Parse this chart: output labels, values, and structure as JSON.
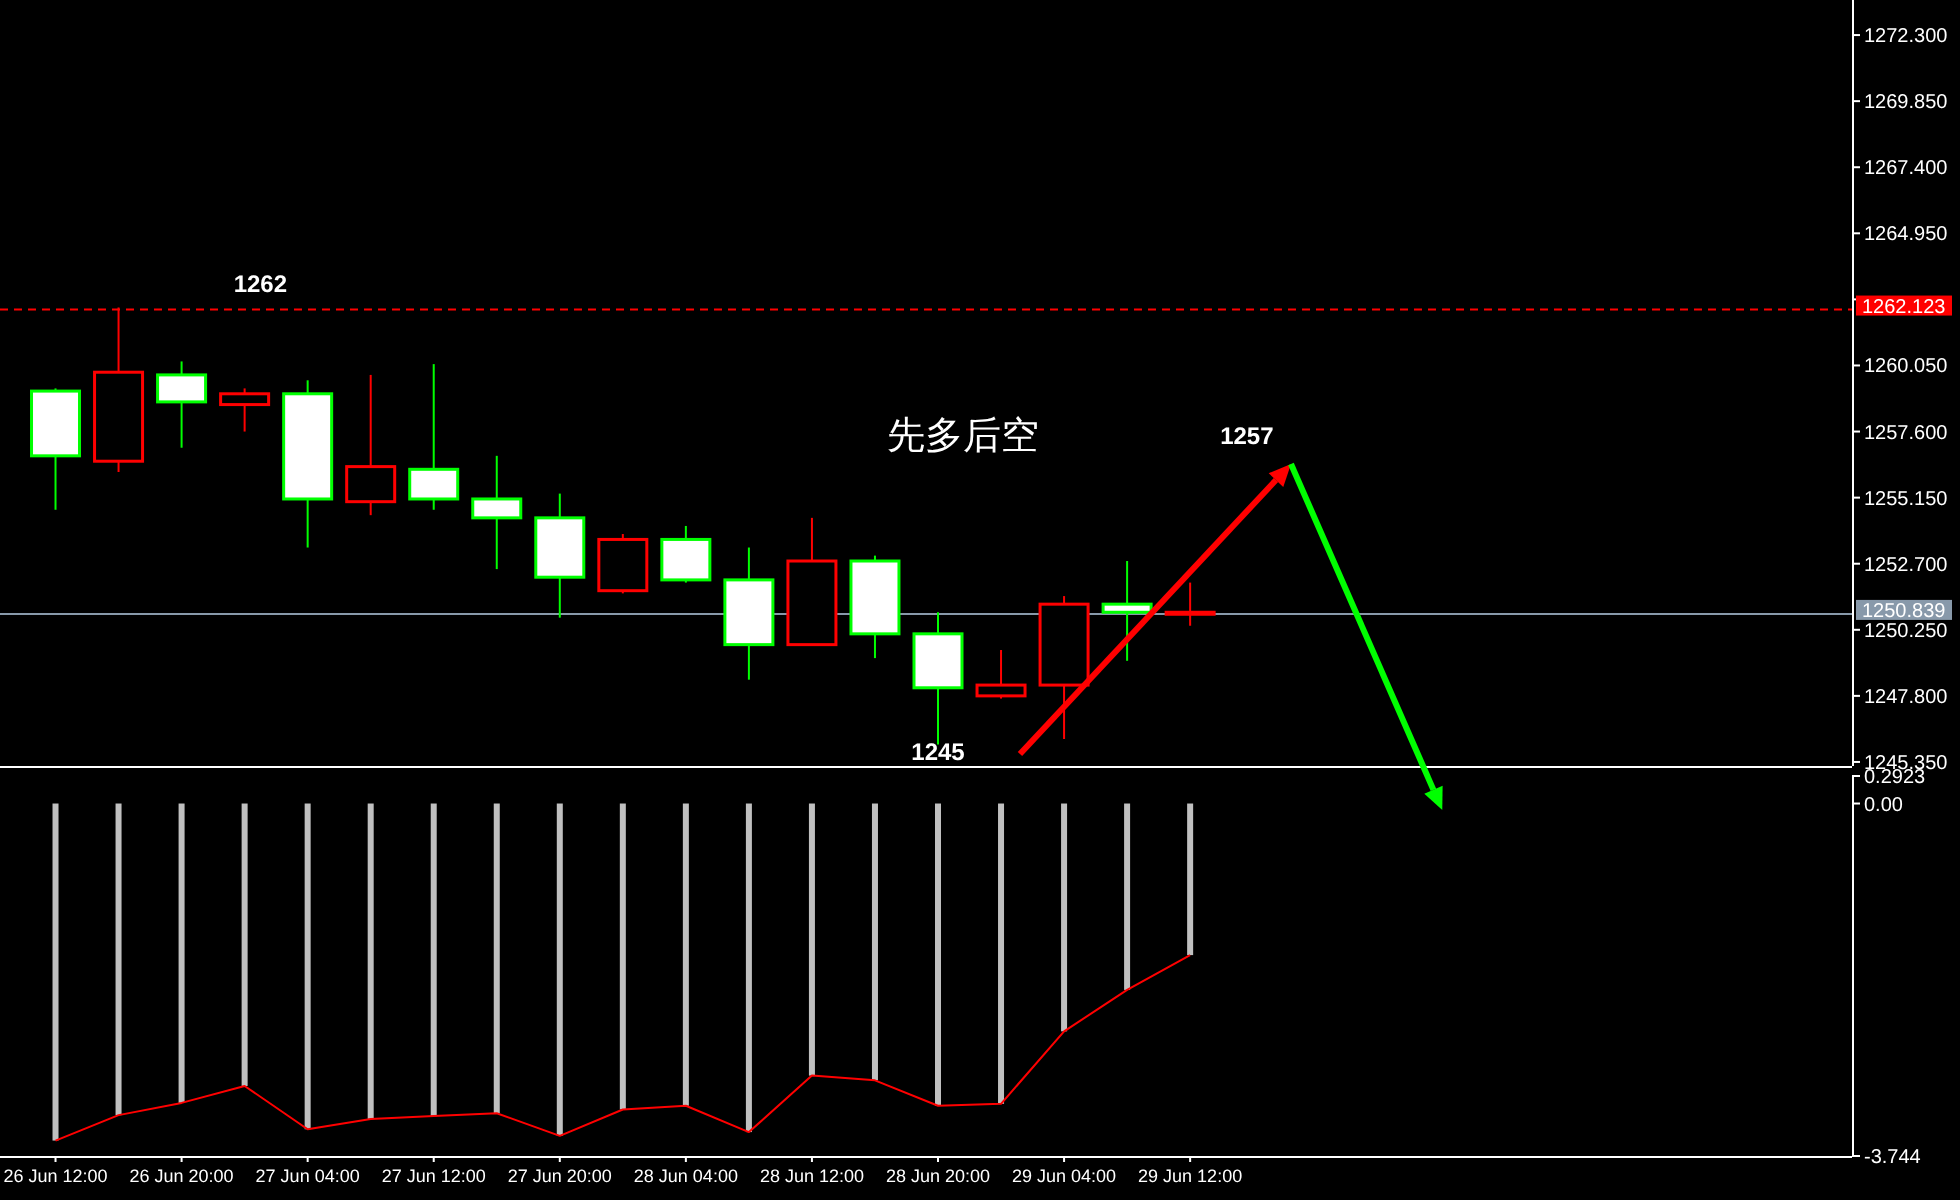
{
  "chart_data": [
    {
      "type": "candlestick",
      "categories": [
        null,
        null,
        null,
        null,
        null,
        null,
        null,
        null,
        null,
        null,
        null,
        null,
        null,
        null,
        null,
        null,
        null,
        null,
        null,
        null,
        null,
        null,
        null,
        null,
        null,
        null,
        null,
        null,
        null
      ],
      "ohlc": [
        [
          1259.1,
          1259.2,
          1254.7,
          1256.7
        ],
        [
          1256.5,
          1262.2,
          1256.1,
          1259.8
        ],
        [
          1259.7,
          1260.2,
          1257.0,
          1258.7
        ],
        [
          1258.6,
          1259.2,
          1257.6,
          1259.0
        ],
        [
          1259.0,
          1259.5,
          1253.3,
          1255.1
        ],
        [
          1255.0,
          1259.7,
          1254.5,
          1256.3
        ],
        [
          1256.2,
          1260.1,
          1254.7,
          1255.1
        ],
        [
          1255.1,
          1256.7,
          1252.5,
          1254.4
        ],
        [
          1254.4,
          1255.3,
          1250.7,
          1252.2
        ],
        [
          1251.7,
          1253.8,
          1251.6,
          1253.6
        ],
        [
          1253.6,
          1254.1,
          1252.0,
          1252.1
        ],
        [
          1252.1,
          1253.3,
          1248.4,
          1249.7
        ],
        [
          1249.7,
          1254.4,
          1249.7,
          1252.8
        ],
        [
          1252.8,
          1253.0,
          1249.2,
          1250.1
        ],
        [
          1250.1,
          1250.9,
          1246.0,
          1248.1
        ],
        [
          1247.8,
          1249.5,
          1247.7,
          1248.2
        ],
        [
          1248.2,
          1251.5,
          1246.2,
          1251.2
        ],
        [
          1251.2,
          1252.8,
          1249.1,
          1250.9
        ],
        [
          1250.9,
          1252.0,
          1250.4,
          1250.9
        ],
        null,
        null,
        null,
        null,
        null,
        null,
        null,
        null,
        null,
        null
      ],
      "colors": [
        "#00ff00",
        "#ff0000",
        "#00ff00",
        "#ff0000",
        "#00ff00",
        "#ff0000",
        "#00ff00",
        "#00ff00",
        "#00ff00",
        "#ff0000",
        "#00ff00",
        "#00ff00",
        "#ff0000",
        "#00ff00",
        "#00ff00",
        "#ff0000",
        "#ff0000",
        "#00ff00",
        "#ff0000",
        null,
        null,
        null,
        null,
        null,
        null,
        null,
        null,
        null,
        null
      ],
      "ylim": [
        1245.2,
        1273.6
      ],
      "yticks": [
        {
          "value": 1245.35,
          "label": "1245.350"
        },
        {
          "value": 1247.8,
          "label": "1247.800"
        },
        {
          "value": 1250.25,
          "label": "1250.250"
        },
        {
          "value": 1252.7,
          "label": "1252.700"
        },
        {
          "value": 1255.15,
          "label": "1255.150"
        },
        {
          "value": 1257.6,
          "label": "1257.600"
        },
        {
          "value": 1260.05,
          "label": "1260.050"
        },
        {
          "value": 1262.5,
          "label": null
        },
        {
          "value": 1264.95,
          "label": "1264.950"
        },
        {
          "value": 1267.4,
          "label": "1267.400"
        },
        {
          "value": 1269.85,
          "label": "1269.850"
        },
        {
          "value": 1272.3,
          "label": "1272.300"
        }
      ],
      "ref_lines": [
        {
          "axis": "y",
          "value": 1262.123,
          "label": "1262.123",
          "color": "#ff0000",
          "line_style": "dashed"
        },
        {
          "axis": "y",
          "value": 1250.839,
          "label": "1250.839",
          "color": "#8899aa",
          "line_style": "solid"
        }
      ],
      "annotations": [
        "1262",
        "1257",
        "1245",
        "先多后空"
      ]
    },
    {
      "type": "line",
      "categories": [
        "26 Jun 12:00",
        null,
        "26 Jun 20:00",
        null,
        "27 Jun 04:00",
        null,
        "27 Jun 12:00",
        null,
        "27 Jun 20:00",
        null,
        "28 Jun 04:00",
        null,
        "28 Jun 12:00",
        null,
        "28 Jun 20:00",
        null,
        "29 Jun 04:00",
        null,
        "29 Jun 12:00",
        null,
        null,
        null,
        null,
        null,
        null,
        null,
        null,
        null,
        null
      ],
      "series": [
        {
          "type": "bar",
          "color": "#c0c0c0",
          "values": [
            -3.58,
            -3.31,
            -3.18,
            -3.0,
            -3.46,
            -3.35,
            -3.32,
            -3.29,
            -3.53,
            -3.25,
            -3.21,
            -3.49,
            -2.89,
            -2.94,
            -3.21,
            -3.19,
            -2.42,
            -1.98,
            -1.61,
            null,
            null,
            null,
            null,
            null,
            null,
            null,
            null,
            null,
            null
          ]
        },
        {
          "type": "line",
          "color": "#ff0000",
          "values": [
            -3.58,
            -3.31,
            -3.18,
            -3.0,
            -3.46,
            -3.35,
            -3.32,
            -3.29,
            -3.53,
            -3.25,
            -3.21,
            -3.49,
            -2.89,
            -2.94,
            -3.21,
            -3.19,
            -2.42,
            -1.98,
            -1.61,
            null,
            null,
            null,
            null,
            null,
            null,
            null,
            null,
            null,
            null
          ]
        }
      ],
      "ylim": [
        -3.744,
        0.2923
      ],
      "yticks": [
        {
          "value": 0.2923,
          "label": "0.2923"
        },
        {
          "value": 0,
          "label": "0.00"
        },
        {
          "value": -3.744,
          "label": "-3.744"
        }
      ]
    }
  ]
}
